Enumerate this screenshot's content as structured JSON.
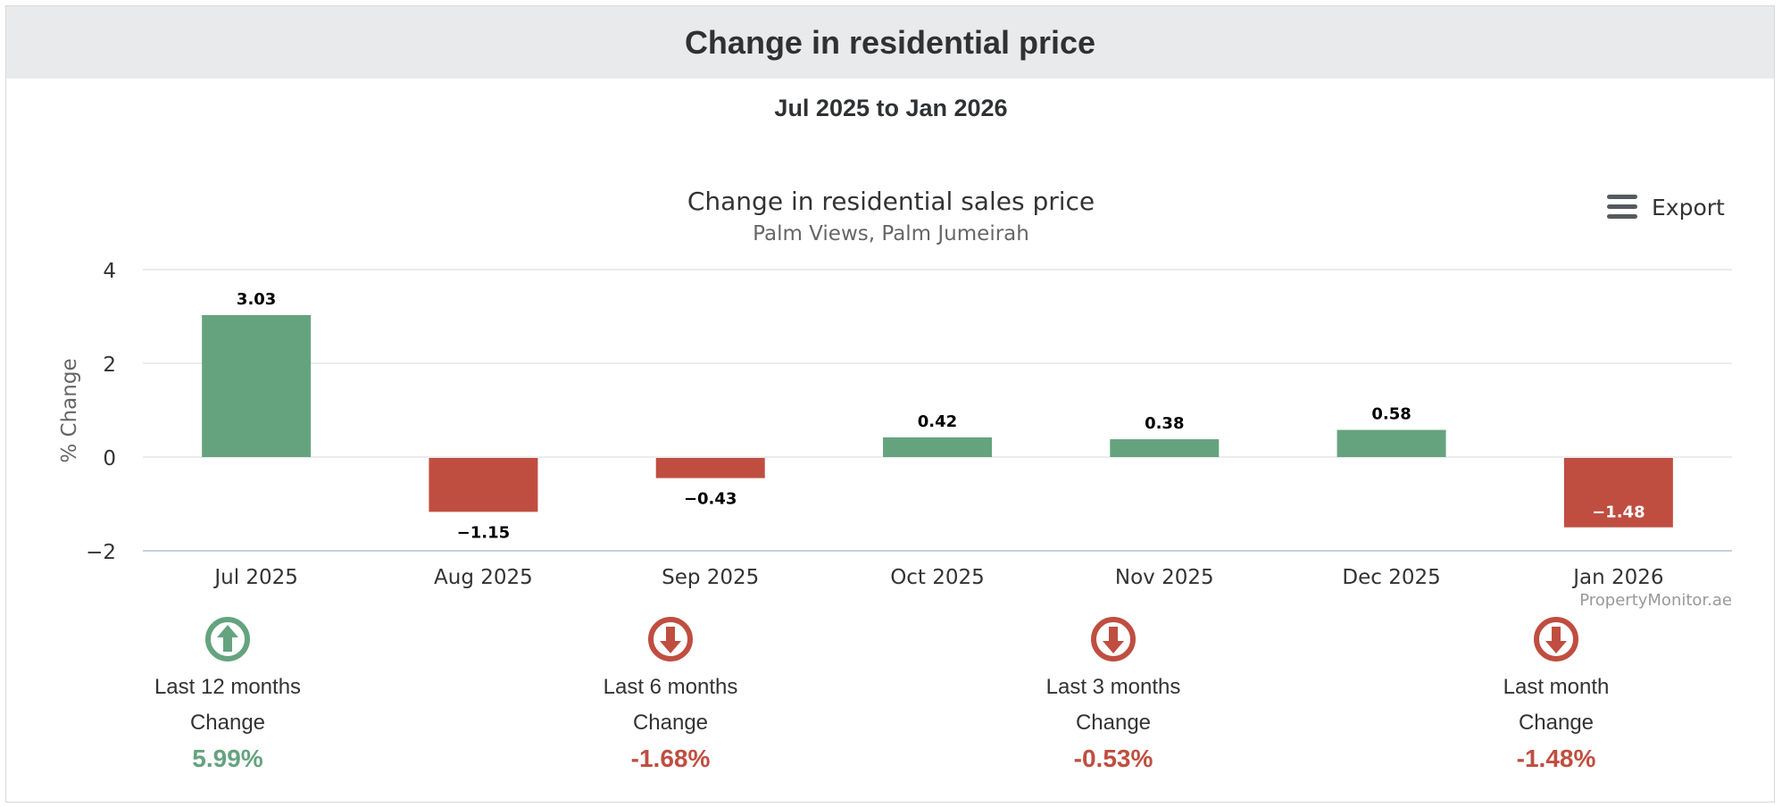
{
  "panel": {
    "title": "Change in residential price",
    "range": "Jul 2025 to Jan 2026"
  },
  "export": {
    "label": "Export",
    "icon": "menu-icon"
  },
  "colors": {
    "positive": "#65a37f",
    "negative": "#bf4e40"
  },
  "chart_data": {
    "type": "bar",
    "title": "Change in residential sales price",
    "subtitle": "Palm Views, Palm Jumeirah",
    "ylabel": "% Change",
    "xlabel": "",
    "ylim": [
      -2,
      4
    ],
    "yticks": [
      4,
      2,
      0,
      -2
    ],
    "ytick_labels": [
      "4",
      "2",
      "0",
      "−2"
    ],
    "categories": [
      "Jul 2025",
      "Aug 2025",
      "Sep 2025",
      "Oct 2025",
      "Nov 2025",
      "Dec 2025",
      "Jan 2026"
    ],
    "values": [
      3.03,
      -1.15,
      -0.43,
      0.42,
      0.38,
      0.58,
      -1.48
    ],
    "value_labels": [
      "3.03",
      "−1.15",
      "−0.43",
      "0.42",
      "0.38",
      "0.58",
      "−1.48"
    ],
    "grid": true,
    "credit": "PropertyMonitor.ae"
  },
  "stats": [
    {
      "period": "Last 12 months",
      "change_label": "Change",
      "value": "5.99%",
      "direction": "up",
      "icon": "arrow-up-circle-icon"
    },
    {
      "period": "Last 6 months",
      "change_label": "Change",
      "value": "-1.68%",
      "direction": "down",
      "icon": "arrow-down-circle-icon"
    },
    {
      "period": "Last 3 months",
      "change_label": "Change",
      "value": "-0.53%",
      "direction": "down",
      "icon": "arrow-down-circle-icon"
    },
    {
      "period": "Last month",
      "change_label": "Change",
      "value": "-1.48%",
      "direction": "down",
      "icon": "arrow-down-circle-icon"
    }
  ]
}
